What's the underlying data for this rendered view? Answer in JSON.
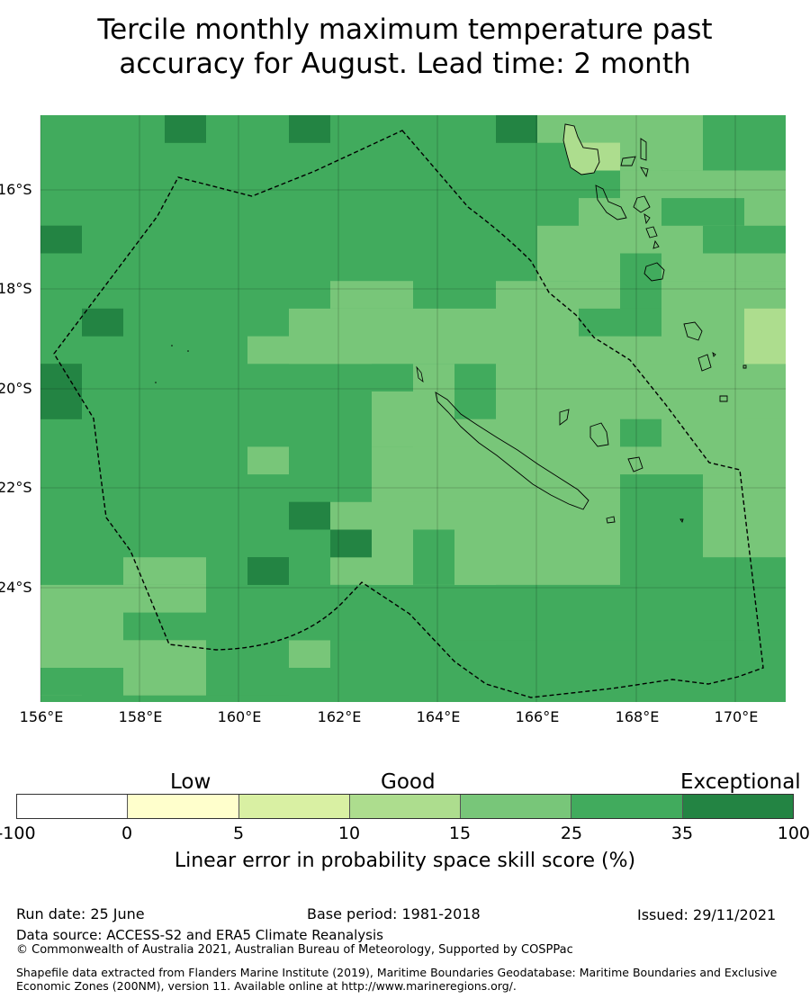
{
  "title": {
    "line1": "Tercile monthly maximum temperature past",
    "line2": "accuracy for August. Lead time: 2 month"
  },
  "map": {
    "lat_ticks": [
      "16°S",
      "18°S",
      "20°S",
      "22°S",
      "24°S"
    ],
    "lon_ticks": [
      "156°E",
      "158°E",
      "160°E",
      "162°E",
      "164°E",
      "166°E",
      "168°E",
      "170°E"
    ],
    "extent": {
      "lon": [
        156.0,
        171.0
      ],
      "lat": [
        -14.6,
        -26.4
      ]
    },
    "grid_cell_deg": [
      0.833,
      0.556
    ],
    "grid_on": true,
    "boundary_style": "dashed",
    "notes": "Skill categories per grid cell; base field 25–35 (green) with regions of 15–25 (light green), 35–100 (dark green) and 10–15 (pale green)"
  },
  "colorbar": {
    "words": [
      "Low",
      "Good",
      "Exceptional"
    ],
    "ticks": [
      "-100",
      "0",
      "5",
      "10",
      "15",
      "25",
      "35",
      "100"
    ],
    "colors": [
      "#ffffff",
      "#ffffcc",
      "#d9f0a3",
      "#addd8e",
      "#78c679",
      "#41ab5d",
      "#238443"
    ],
    "label": "Linear error in probability space skill score (%)"
  },
  "footer": {
    "run_date": "Run date: 25 June",
    "base_period": "Base period: 1981-2018",
    "issued": "Issued: 29/11/2021",
    "data_source": "Data source: ACCESS-S2 and ERA5 Climate Reanalysis",
    "copyright": "© Commonwealth of Australia 2021, Australian Bureau of Meteorology, Supported by COSPPac",
    "shapefile": "Shapefile data extracted from Flanders Marine Institute (2019), Maritime Boundaries Geodatabase: Maritime Boundaries and Exclusive Economic Zones (200NM), version 11. Available online at http://www.marineregions.org/."
  }
}
